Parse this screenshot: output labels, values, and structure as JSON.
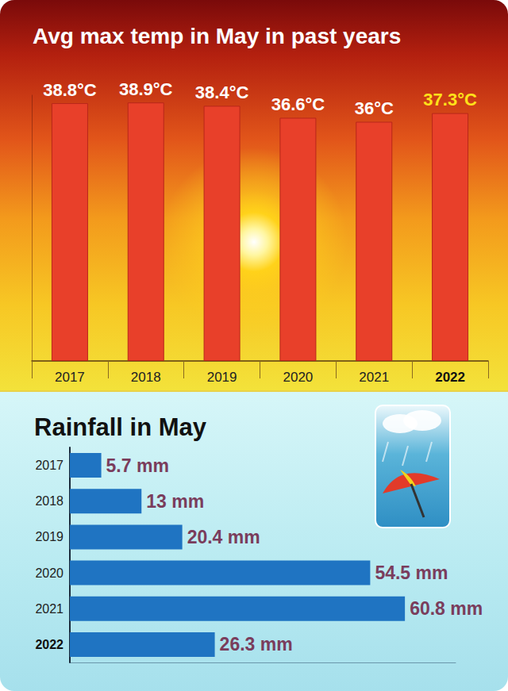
{
  "chart_data": [
    {
      "type": "bar",
      "title": "Avg max temp in May in past years",
      "categories": [
        "2017",
        "2018",
        "2019",
        "2020",
        "2021",
        "2022"
      ],
      "values": [
        38.8,
        38.9,
        38.4,
        36.6,
        36,
        37.3
      ],
      "value_labels": [
        "38.8°C",
        "38.9°C",
        "38.4°C",
        "36.6°C",
        "36°C",
        "37.3°C"
      ],
      "data_labels": true,
      "color": "#e8402a",
      "ylim": [
        0,
        40
      ],
      "grid": false,
      "tick_labels": "x"
    },
    {
      "type": "bar",
      "title": "Rainfall in May",
      "orientation": "horizontal",
      "categories": [
        "2017",
        "2018",
        "2019",
        "2020",
        "2021",
        "2022"
      ],
      "values": [
        5.7,
        13,
        20.4,
        54.5,
        60.8,
        26.3
      ],
      "value_labels": [
        "5.7 mm",
        "13 mm",
        "20.4 mm",
        "54.5 mm",
        "60.8 mm",
        "26.3 mm"
      ],
      "data_labels": true,
      "color": "#1f74c2",
      "xlim": [
        0,
        70
      ],
      "grid": false,
      "tick_labels": "y"
    }
  ]
}
